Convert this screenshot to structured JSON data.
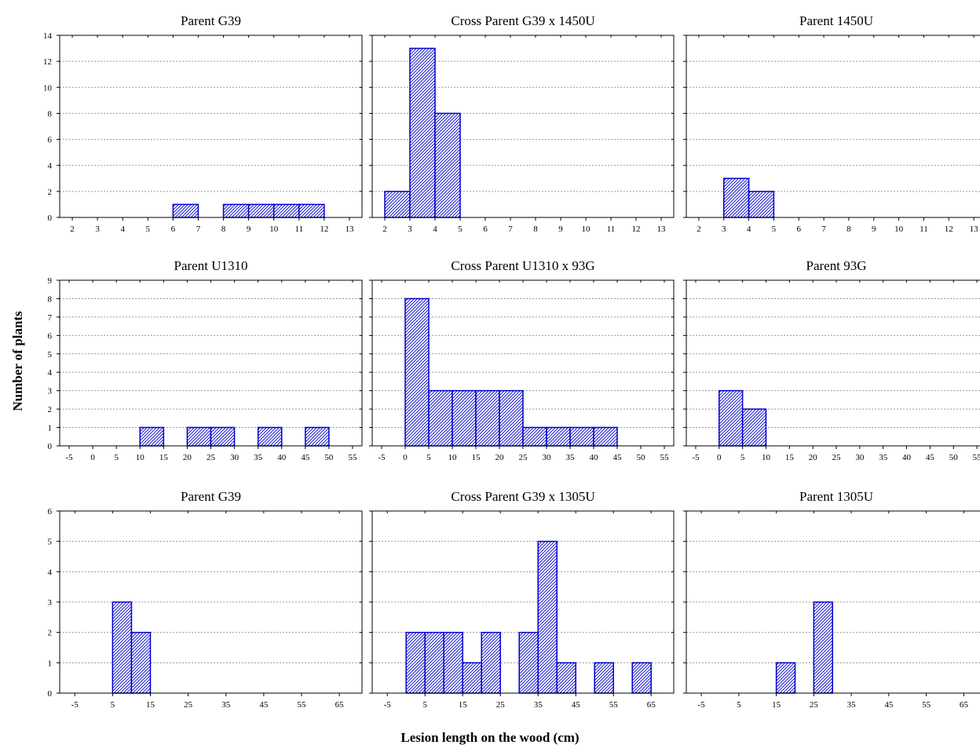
{
  "figure": {
    "ylabel": "Number of plants",
    "xlabel": "Lesion length on the wood (cm)"
  },
  "colors": {
    "bar_fill": "#ffffff",
    "bar_stroke": "#0000cc",
    "hatch": "#0000cc",
    "frame": "#000000",
    "grid": "#999999"
  },
  "chart_data": [
    {
      "type": "bar",
      "title": "Parent  G39",
      "xticks": [
        2,
        3,
        4,
        5,
        6,
        7,
        8,
        9,
        10,
        11,
        12,
        13
      ],
      "xlim": [
        1.5,
        13.5
      ],
      "yticks": [
        0,
        2,
        4,
        6,
        8,
        10,
        12,
        14
      ],
      "ylim": [
        0,
        14
      ],
      "grid": "horizontal dotted",
      "bins": [
        {
          "x0": 6,
          "x1": 7,
          "count": 1
        },
        {
          "x0": 8,
          "x1": 9,
          "count": 1
        },
        {
          "x0": 9,
          "x1": 10,
          "count": 1
        },
        {
          "x0": 10,
          "x1": 11,
          "count": 1
        },
        {
          "x0": 11,
          "x1": 12,
          "count": 1
        }
      ]
    },
    {
      "type": "bar",
      "title": "Cross Parent G39 x 1450U",
      "xticks": [
        2,
        3,
        4,
        5,
        6,
        7,
        8,
        9,
        10,
        11,
        12,
        13
      ],
      "xlim": [
        1.5,
        13.5
      ],
      "yticks": [
        0,
        2,
        4,
        6,
        8,
        10,
        12,
        14
      ],
      "ylim": [
        0,
        14
      ],
      "grid": "horizontal dotted",
      "bins": [
        {
          "x0": 2,
          "x1": 3,
          "count": 2
        },
        {
          "x0": 3,
          "x1": 4,
          "count": 13
        },
        {
          "x0": 4,
          "x1": 5,
          "count": 8
        }
      ]
    },
    {
      "type": "bar",
      "title": "Parent 1450U",
      "xticks": [
        2,
        3,
        4,
        5,
        6,
        7,
        8,
        9,
        10,
        11,
        12,
        13
      ],
      "xlim": [
        1.5,
        13.5
      ],
      "yticks": [
        0,
        2,
        4,
        6,
        8,
        10,
        12,
        14
      ],
      "ylim": [
        0,
        14
      ],
      "grid": "horizontal dotted",
      "bins": [
        {
          "x0": 3,
          "x1": 4,
          "count": 3
        },
        {
          "x0": 4,
          "x1": 5,
          "count": 2
        }
      ]
    },
    {
      "type": "bar",
      "title": "Parent U1310",
      "xticks": [
        -5,
        0,
        5,
        10,
        15,
        20,
        25,
        30,
        35,
        40,
        45,
        50,
        55
      ],
      "xlim": [
        -7,
        57
      ],
      "yticks": [
        0,
        1,
        2,
        3,
        4,
        5,
        6,
        7,
        8,
        9
      ],
      "ylim": [
        0,
        9
      ],
      "grid": "horizontal dotted",
      "bins": [
        {
          "x0": 10,
          "x1": 15,
          "count": 1
        },
        {
          "x0": 20,
          "x1": 25,
          "count": 1
        },
        {
          "x0": 25,
          "x1": 30,
          "count": 1
        },
        {
          "x0": 35,
          "x1": 40,
          "count": 1
        },
        {
          "x0": 45,
          "x1": 50,
          "count": 1
        }
      ]
    },
    {
      "type": "bar",
      "title": "Cross Parent U1310 x 93G",
      "xticks": [
        -5,
        0,
        5,
        10,
        15,
        20,
        25,
        30,
        35,
        40,
        45,
        50,
        55
      ],
      "xlim": [
        -7,
        57
      ],
      "yticks": [
        0,
        1,
        2,
        3,
        4,
        5,
        6,
        7,
        8,
        9
      ],
      "ylim": [
        0,
        9
      ],
      "grid": "horizontal dotted",
      "bins": [
        {
          "x0": 0,
          "x1": 5,
          "count": 8
        },
        {
          "x0": 5,
          "x1": 10,
          "count": 3
        },
        {
          "x0": 10,
          "x1": 15,
          "count": 3
        },
        {
          "x0": 15,
          "x1": 20,
          "count": 3
        },
        {
          "x0": 20,
          "x1": 25,
          "count": 3
        },
        {
          "x0": 25,
          "x1": 30,
          "count": 1
        },
        {
          "x0": 30,
          "x1": 35,
          "count": 1
        },
        {
          "x0": 35,
          "x1": 40,
          "count": 1
        },
        {
          "x0": 40,
          "x1": 45,
          "count": 1
        }
      ]
    },
    {
      "type": "bar",
      "title": "Parent 93G",
      "xticks": [
        -5,
        0,
        5,
        10,
        15,
        20,
        25,
        30,
        35,
        40,
        45,
        50,
        55
      ],
      "xlim": [
        -7,
        57
      ],
      "yticks": [
        0,
        1,
        2,
        3,
        4,
        5,
        6,
        7,
        8,
        9
      ],
      "ylim": [
        0,
        9
      ],
      "grid": "horizontal dotted",
      "bins": [
        {
          "x0": 0,
          "x1": 5,
          "count": 3
        },
        {
          "x0": 5,
          "x1": 10,
          "count": 2
        }
      ]
    },
    {
      "type": "bar",
      "title": "Parent  G39",
      "xticks": [
        -5,
        5,
        15,
        25,
        35,
        45,
        55,
        65
      ],
      "xlim": [
        -9,
        71
      ],
      "yticks": [
        0,
        1,
        2,
        3,
        4,
        5,
        6
      ],
      "ylim": [
        0,
        6
      ],
      "grid": "horizontal dotted",
      "bins": [
        {
          "x0": 5,
          "x1": 10,
          "count": 3
        },
        {
          "x0": 10,
          "x1": 15,
          "count": 2
        }
      ]
    },
    {
      "type": "bar",
      "title": "Cross Parent G39 x 1305U",
      "xticks": [
        -5,
        5,
        15,
        25,
        35,
        45,
        55,
        65
      ],
      "xlim": [
        -9,
        71
      ],
      "yticks": [
        0,
        1,
        2,
        3,
        4,
        5,
        6
      ],
      "ylim": [
        0,
        6
      ],
      "grid": "horizontal dotted",
      "bins": [
        {
          "x0": 0,
          "x1": 5,
          "count": 2
        },
        {
          "x0": 5,
          "x1": 10,
          "count": 2
        },
        {
          "x0": 10,
          "x1": 15,
          "count": 2
        },
        {
          "x0": 15,
          "x1": 20,
          "count": 1
        },
        {
          "x0": 20,
          "x1": 25,
          "count": 2
        },
        {
          "x0": 30,
          "x1": 35,
          "count": 2
        },
        {
          "x0": 35,
          "x1": 40,
          "count": 5
        },
        {
          "x0": 40,
          "x1": 45,
          "count": 1
        },
        {
          "x0": 50,
          "x1": 55,
          "count": 1
        },
        {
          "x0": 60,
          "x1": 65,
          "count": 1
        }
      ]
    },
    {
      "type": "bar",
      "title": "Parent  1305U",
      "xticks": [
        -5,
        5,
        15,
        25,
        35,
        45,
        55,
        65
      ],
      "xlim": [
        -9,
        71
      ],
      "yticks": [
        0,
        1,
        2,
        3,
        4,
        5,
        6
      ],
      "ylim": [
        0,
        6
      ],
      "grid": "horizontal dotted",
      "bins": [
        {
          "x0": 15,
          "x1": 20,
          "count": 1
        },
        {
          "x0": 25,
          "x1": 30,
          "count": 3
        }
      ]
    }
  ]
}
